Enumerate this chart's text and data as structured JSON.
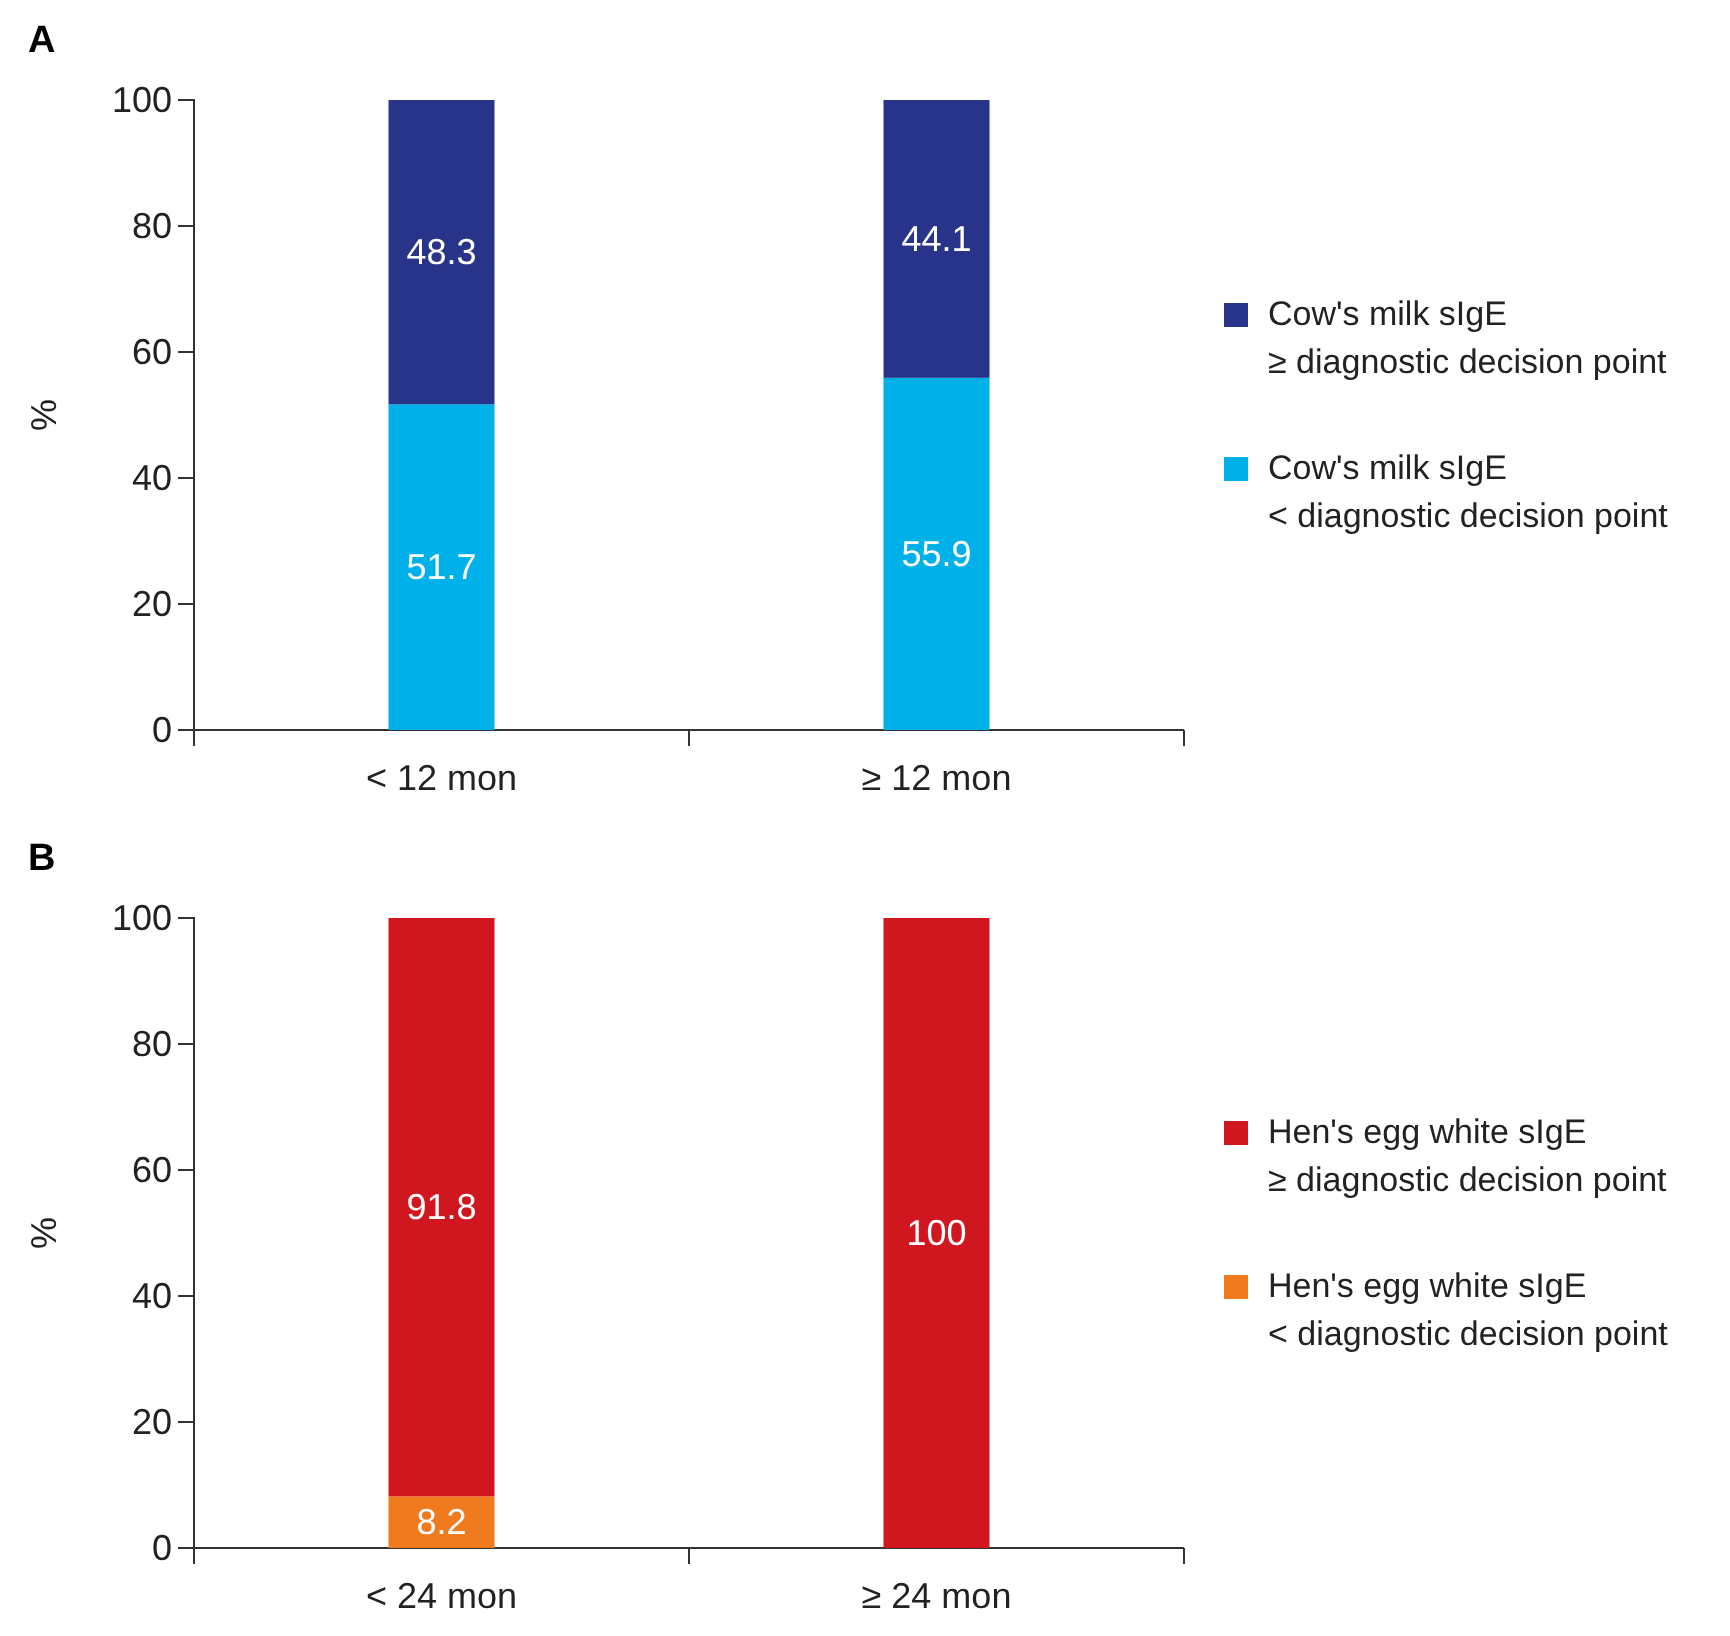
{
  "chart_data": [
    {
      "type": "bar",
      "title": "A",
      "ylabel": "%",
      "categories": [
        "< 12 mon",
        "≥ 12 mon"
      ],
      "stacked": true,
      "ylim": [
        0,
        100
      ],
      "yticks": [
        0,
        20,
        40,
        60,
        80,
        100
      ],
      "legend": "right",
      "grid": false,
      "data_labels": true,
      "series": [
        {
          "name": "Cow's milk sIgE\n< diagnostic decision point",
          "color": "#00b0e8",
          "values": [
            51.7,
            55.9
          ]
        },
        {
          "name": "Cow's milk sIgE\n≥ diagnostic decision point",
          "color": "#28348a",
          "values": [
            48.3,
            44.1
          ]
        }
      ]
    },
    {
      "type": "bar",
      "title": "B",
      "ylabel": "%",
      "categories": [
        "< 24 mon",
        "≥ 24 mon"
      ],
      "stacked": true,
      "ylim": [
        0,
        100
      ],
      "yticks": [
        0,
        20,
        40,
        60,
        80,
        100
      ],
      "legend": "right",
      "grid": false,
      "series": [
        {
          "name": "Hen's egg white sIgE\n< diagnostic decision point",
          "color": "#f07a1e",
          "values": [
            8.2,
            0
          ],
          "value_labels": [
            "8.2",
            null
          ]
        },
        {
          "name": "Hen's egg white sIgE\n≥ diagnostic decision point",
          "color": "#d0161e",
          "values": [
            91.8,
            100
          ],
          "value_labels": [
            "91.8",
            "100"
          ]
        }
      ]
    }
  ]
}
